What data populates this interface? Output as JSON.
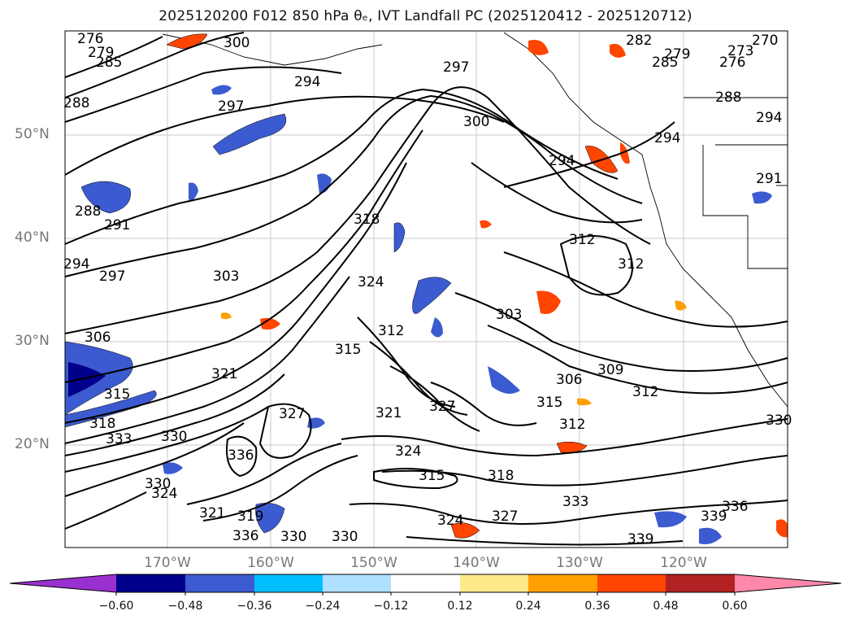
{
  "title": "2025120200 F012 850 hPa θₑ, IVT Landfall PC (2025120412 - 2025120712)",
  "map": {
    "lat_ticks": [
      "50°N",
      "40°N",
      "30°N",
      "20°N"
    ],
    "lon_ticks": [
      "170°W",
      "160°W",
      "150°W",
      "140°W",
      "130°W",
      "120°W"
    ],
    "contour_labels": [
      {
        "text": "276"
      },
      {
        "text": "279"
      },
      {
        "text": "285"
      },
      {
        "text": "300"
      },
      {
        "text": "288"
      },
      {
        "text": "294"
      },
      {
        "text": "297"
      },
      {
        "text": "297"
      },
      {
        "text": "300"
      },
      {
        "text": "294"
      },
      {
        "text": "282"
      },
      {
        "text": "279"
      },
      {
        "text": "285"
      },
      {
        "text": "276"
      },
      {
        "text": "273"
      },
      {
        "text": "270"
      },
      {
        "text": "288"
      },
      {
        "text": "294"
      },
      {
        "text": "294"
      },
      {
        "text": "291"
      },
      {
        "text": "288"
      },
      {
        "text": "291"
      },
      {
        "text": "294"
      },
      {
        "text": "297"
      },
      {
        "text": "303"
      },
      {
        "text": "318"
      },
      {
        "text": "324"
      },
      {
        "text": "312"
      },
      {
        "text": "312"
      },
      {
        "text": "312"
      },
      {
        "text": "303"
      },
      {
        "text": "306"
      },
      {
        "text": "315"
      },
      {
        "text": "321"
      },
      {
        "text": "315"
      },
      {
        "text": "318"
      },
      {
        "text": "333"
      },
      {
        "text": "330"
      },
      {
        "text": "327"
      },
      {
        "text": "336"
      },
      {
        "text": "330"
      },
      {
        "text": "324"
      },
      {
        "text": "321"
      },
      {
        "text": "319"
      },
      {
        "text": "336"
      },
      {
        "text": "330"
      },
      {
        "text": "324"
      },
      {
        "text": "315"
      },
      {
        "text": "318"
      },
      {
        "text": "327"
      },
      {
        "text": "333"
      },
      {
        "text": "339"
      },
      {
        "text": "339"
      },
      {
        "text": "336"
      },
      {
        "text": "306"
      },
      {
        "text": "309"
      },
      {
        "text": "312"
      },
      {
        "text": "315"
      },
      {
        "text": "312"
      },
      {
        "text": "330"
      },
      {
        "text": "324"
      },
      {
        "text": "321"
      },
      {
        "text": "327"
      },
      {
        "text": "330"
      }
    ]
  },
  "colorbar": {
    "ticks": [
      "−0.60",
      "−0.48",
      "−0.36",
      "−0.24",
      "−0.12",
      "0.12",
      "0.24",
      "0.36",
      "0.48",
      "0.60"
    ],
    "colors": [
      "#9b30d0",
      "#00008b",
      "#3c5bd0",
      "#00bfff",
      "#b0e0ff",
      "#ffffff",
      "#ffe88a",
      "#ffa000",
      "#ff4500",
      "#b22222",
      "#ff88aa"
    ]
  }
}
